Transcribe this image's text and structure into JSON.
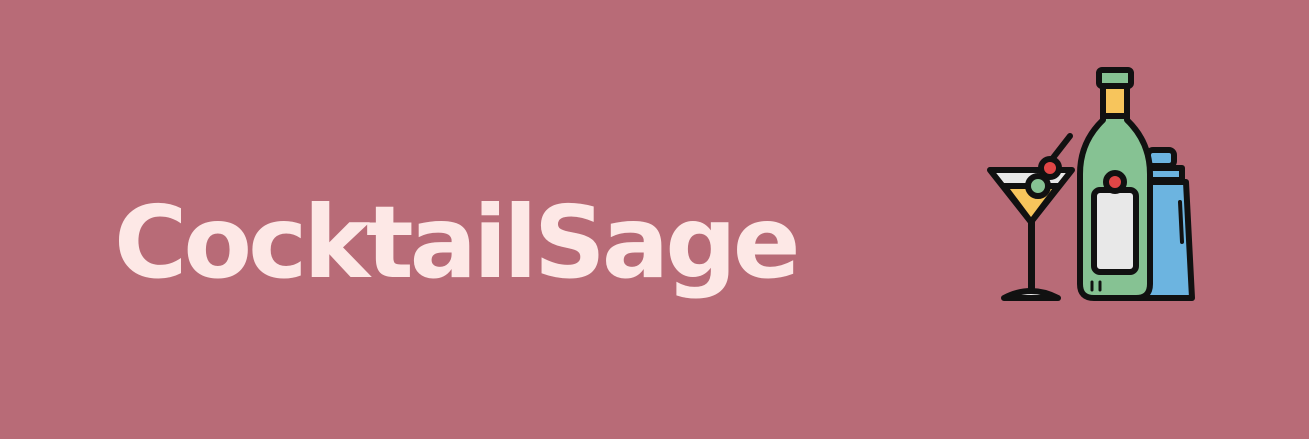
{
  "brand": {
    "name": "CocktailSage"
  },
  "logo": {
    "icon": "cocktail-bottle-shaker-icon",
    "parts": [
      "martini-glass-icon",
      "olive-icon",
      "bottle-icon",
      "shaker-icon"
    ]
  },
  "colors": {
    "background": "#b86b77",
    "title_text": "#fde8e6",
    "bottle": "#86c293",
    "shaker": "#6cb4e0",
    "bottle_cap": "#f7c55c",
    "cocktail_liquid": "#f7c55c",
    "olive_green": "#86c293",
    "cherry_red": "#e04646",
    "label": "#e8e8e8",
    "outline": "#111111"
  }
}
